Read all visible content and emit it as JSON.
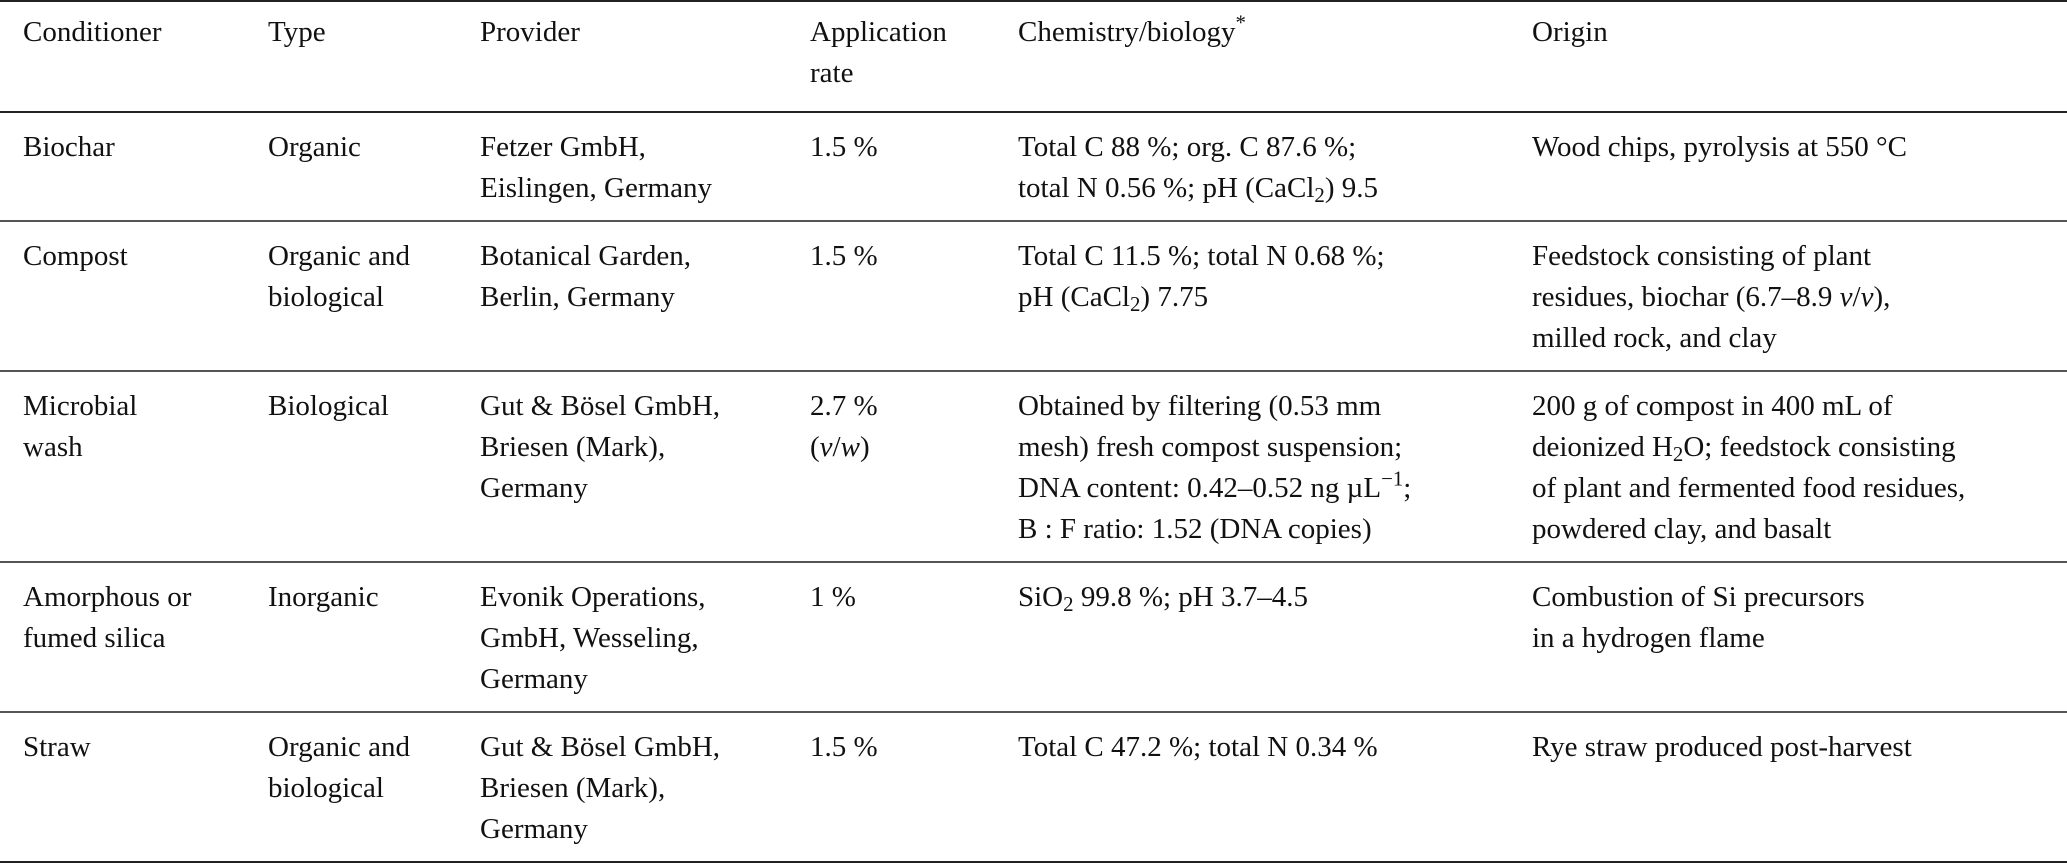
{
  "table": {
    "headers": {
      "conditioner": "Conditioner",
      "type": "Type",
      "provider": "Provider",
      "application_rate_line1": "Application",
      "application_rate_line2": "rate",
      "chemistry": "Chemistry/biology",
      "chemistry_marker": "*",
      "origin": "Origin"
    },
    "rows": [
      {
        "conditioner": "Biochar",
        "type": "Organic",
        "provider": [
          "Fetzer GmbH,",
          "Eislingen, Germany"
        ],
        "rate": "1.5 %",
        "chem": {
          "l1": "Total C 88 %; org. C 87.6 %;",
          "l2a": "total N 0.56 %; pH (CaCl",
          "l2sub": "2",
          "l2b": ") 9.5"
        },
        "origin": [
          "Wood chips, pyrolysis at 550 °C"
        ]
      },
      {
        "conditioner": "Compost",
        "type": [
          "Organic and",
          "biological"
        ],
        "provider": [
          "Botanical Garden,",
          "Berlin, Germany"
        ],
        "rate": "1.5 %",
        "chem": {
          "l1": "Total C 11.5 %; total N 0.68 %;",
          "l2a": "pH (CaCl",
          "l2sub": "2",
          "l2b": ") 7.75"
        },
        "origin": {
          "l1": "Feedstock consisting of plant",
          "l2a": "residues, biochar (6.7–8.9 ",
          "l2v1": "v",
          "l2slash": "/",
          "l2v2": "v",
          "l2b": "),",
          "l3": "milled rock, and clay"
        }
      },
      {
        "conditioner": [
          "Microbial",
          "wash"
        ],
        "type": "Biological",
        "provider": [
          "Gut & Bösel GmbH,",
          "Briesen (Mark),",
          "Germany"
        ],
        "rate": {
          "l1": "2.7 %",
          "l2open": "(",
          "l2v": "v",
          "l2slash": "/",
          "l2w": "w",
          "l2close": ")"
        },
        "chem": {
          "l1": "Obtained by filtering (0.53 mm",
          "l2": "mesh) fresh compost suspension;",
          "l3a": "DNA content: 0.42–0.52 ng µL",
          "l3sup": "−1",
          "l3b": ";",
          "l4": "B : F ratio: 1.52 (DNA copies)"
        },
        "origin": {
          "l1": "200 g of compost in 400 mL of",
          "l2a": "deionized H",
          "l2sub": "2",
          "l2b": "O; feedstock consisting",
          "l3": "of plant and fermented food residues,",
          "l4": "powdered clay, and basalt"
        }
      },
      {
        "conditioner": [
          "Amorphous or",
          "fumed silica"
        ],
        "type": "Inorganic",
        "provider": [
          "Evonik Operations,",
          "GmbH, Wesseling,",
          "Germany"
        ],
        "rate": "1 %",
        "chem": {
          "l1a": "SiO",
          "l1sub": "2",
          "l1b": " 99.8 %; pH 3.7–4.5"
        },
        "origin": [
          "Combustion of Si precursors",
          "in a hydrogen flame"
        ]
      },
      {
        "conditioner": "Straw",
        "type": [
          "Organic and",
          "biological"
        ],
        "provider": [
          "Gut & Bösel GmbH,",
          "Briesen (Mark),",
          "Germany"
        ],
        "rate": "1.5 %",
        "chem": {
          "l1": "Total C 47.2 %; total N 0.34 %"
        },
        "origin": [
          "Rye straw produced post-harvest"
        ]
      }
    ]
  }
}
